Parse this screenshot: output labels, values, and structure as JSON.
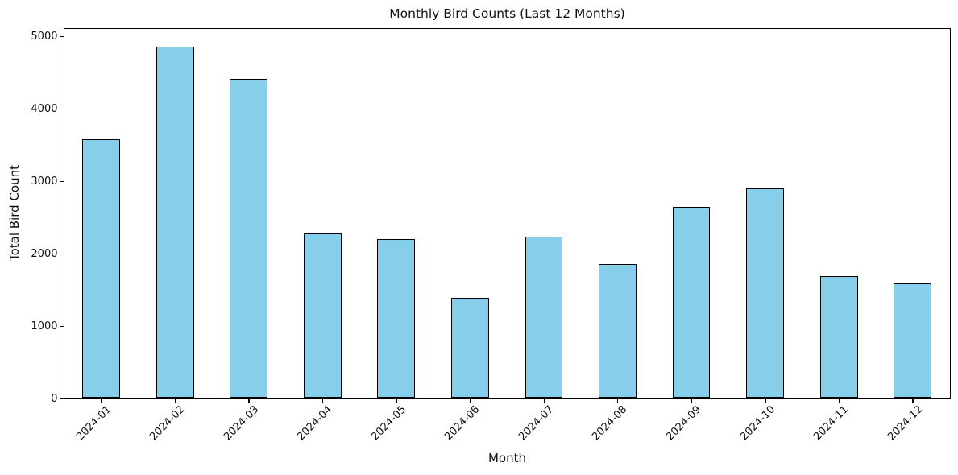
{
  "chart_data": {
    "type": "bar",
    "title": "Monthly Bird Counts (Last 12 Months)",
    "xlabel": "Month",
    "ylabel": "Total Bird Count",
    "categories": [
      "2024-01",
      "2024-02",
      "2024-03",
      "2024-04",
      "2024-05",
      "2024-06",
      "2024-07",
      "2024-08",
      "2024-09",
      "2024-10",
      "2024-11",
      "2024-12"
    ],
    "values": [
      3590,
      4880,
      4430,
      2280,
      2200,
      1385,
      2240,
      1860,
      2650,
      2905,
      1690,
      1595
    ],
    "yticks": [
      0,
      1000,
      2000,
      3000,
      4000,
      5000
    ],
    "ylim": [
      0,
      5120
    ],
    "x_tick_rotation_deg": 45,
    "grid": false,
    "legend": "none",
    "bar_color": "#87CEEB",
    "bar_edge_color": "#000000"
  }
}
